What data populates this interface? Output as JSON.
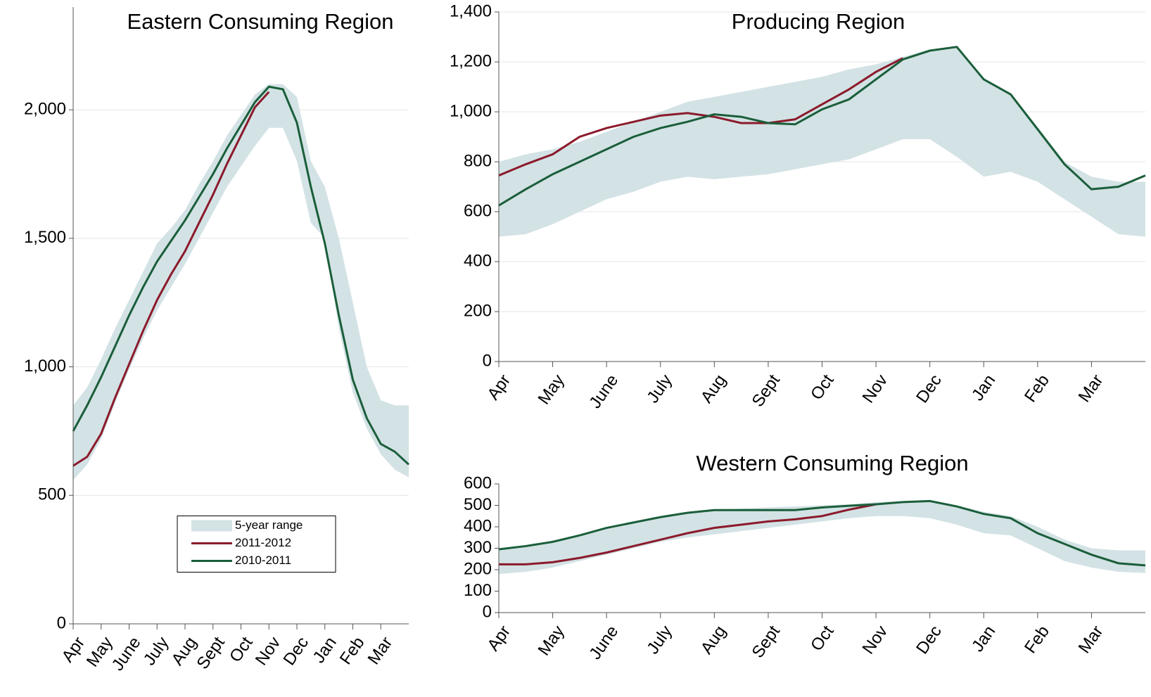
{
  "chart_data": [
    {
      "type": "line",
      "title": "Eastern Consuming Region",
      "x": [
        0,
        0.5,
        1,
        1.5,
        2,
        2.5,
        3,
        3.5,
        4,
        4.5,
        5,
        5.5,
        6,
        6.5,
        7,
        7.5,
        8,
        8.5,
        9,
        9.5,
        10,
        10.5,
        11,
        11.5,
        12
      ],
      "xlim": [
        0,
        12
      ],
      "xticks": [
        {
          "value": 0,
          "label": "Apr"
        },
        {
          "value": 1,
          "label": "May"
        },
        {
          "value": 2,
          "label": "June"
        },
        {
          "value": 3,
          "label": "July"
        },
        {
          "value": 4,
          "label": "Aug"
        },
        {
          "value": 5,
          "label": "Sept"
        },
        {
          "value": 6,
          "label": "Oct"
        },
        {
          "value": 7,
          "label": "Nov"
        },
        {
          "value": 8,
          "label": "Dec"
        },
        {
          "value": 9,
          "label": "Jan"
        },
        {
          "value": 10,
          "label": "Feb"
        },
        {
          "value": 11,
          "label": "Mar"
        }
      ],
      "ylim": [
        0,
        2400
      ],
      "yticks": [
        0,
        500,
        {
          "value": 1000,
          "label": "1,000"
        },
        {
          "value": 1500,
          "label": "1,500"
        },
        {
          "value": 2000,
          "label": "2,000"
        }
      ],
      "grid": true,
      "legend": "lower center",
      "series": [
        {
          "name": "5-year range",
          "color": "#d3e2e5",
          "high": [
            850,
            920,
            1030,
            1150,
            1260,
            1370,
            1480,
            1540,
            1610,
            1710,
            1800,
            1900,
            1980,
            2060,
            2100,
            2100,
            2050,
            1800,
            1700,
            1500,
            1250,
            1000,
            870,
            850,
            850
          ],
          "low": [
            560,
            620,
            720,
            860,
            990,
            1110,
            1220,
            1310,
            1400,
            1500,
            1600,
            1700,
            1780,
            1860,
            1930,
            1930,
            1800,
            1560,
            1500,
            1150,
            900,
            760,
            660,
            600,
            570
          ]
        },
        {
          "name": "2011-2012",
          "color": "#8b1a2b",
          "values": [
            615,
            650,
            740,
            880,
            1010,
            1140,
            1260,
            1360,
            1450,
            1560,
            1670,
            1790,
            1900,
            2010,
            2070,
            null,
            null,
            null,
            null,
            null,
            null,
            null,
            null,
            null,
            null
          ]
        },
        {
          "name": "2010-2011",
          "color": "#1a5e3a",
          "values": [
            750,
            850,
            960,
            1080,
            1200,
            1310,
            1410,
            1490,
            1570,
            1660,
            1750,
            1850,
            1940,
            2030,
            2090,
            2080,
            1950,
            1700,
            1480,
            1200,
            950,
            800,
            700,
            670,
            620
          ]
        }
      ]
    },
    {
      "type": "line",
      "title": "Producing Region",
      "x": [
        0,
        0.5,
        1,
        1.5,
        2,
        2.5,
        3,
        3.5,
        4,
        4.5,
        5,
        5.5,
        6,
        6.5,
        7,
        7.5,
        8,
        8.5,
        9,
        9.5,
        10,
        10.5,
        11,
        11.5,
        12
      ],
      "xlim": [
        0,
        12
      ],
      "xticks": [
        {
          "value": 0,
          "label": "Apr"
        },
        {
          "value": 1,
          "label": "May"
        },
        {
          "value": 2,
          "label": "June"
        },
        {
          "value": 3,
          "label": "July"
        },
        {
          "value": 4,
          "label": "Aug"
        },
        {
          "value": 5,
          "label": "Sept"
        },
        {
          "value": 6,
          "label": "Oct"
        },
        {
          "value": 7,
          "label": "Nov"
        },
        {
          "value": 8,
          "label": "Dec"
        },
        {
          "value": 9,
          "label": "Jan"
        },
        {
          "value": 10,
          "label": "Feb"
        },
        {
          "value": 11,
          "label": "Mar"
        }
      ],
      "ylim": [
        0,
        1400
      ],
      "yticks": [
        0,
        200,
        400,
        600,
        800,
        {
          "value": 1000,
          "label": "1,000"
        },
        {
          "value": 1200,
          "label": "1,200"
        },
        {
          "value": 1400,
          "label": "1,400"
        }
      ],
      "grid": true,
      "series": [
        {
          "color": "#d3e2e5",
          "high": [
            800,
            830,
            850,
            880,
            920,
            960,
            1000,
            1040,
            1060,
            1080,
            1100,
            1120,
            1140,
            1170,
            1190,
            1220,
            1250,
            1260,
            1130,
            1070,
            940,
            800,
            740,
            720,
            720
          ],
          "low": [
            500,
            510,
            550,
            600,
            650,
            680,
            720,
            740,
            730,
            740,
            750,
            770,
            790,
            810,
            850,
            890,
            890,
            820,
            740,
            760,
            720,
            650,
            580,
            510,
            500
          ]
        },
        {
          "color": "#8b1a2b",
          "values": [
            745,
            790,
            830,
            900,
            935,
            960,
            985,
            995,
            980,
            955,
            955,
            970,
            1030,
            1090,
            1160,
            1215,
            null,
            null,
            null,
            null,
            null,
            null,
            null,
            null,
            null
          ]
        },
        {
          "color": "#1a5e3a",
          "values": [
            625,
            690,
            750,
            800,
            850,
            900,
            935,
            960,
            990,
            980,
            955,
            950,
            1010,
            1050,
            1130,
            1210,
            1245,
            1260,
            1130,
            1070,
            930,
            790,
            690,
            700,
            745
          ]
        }
      ]
    },
    {
      "type": "line",
      "title": "Western Consuming Region",
      "x": [
        0,
        0.5,
        1,
        1.5,
        2,
        2.5,
        3,
        3.5,
        4,
        4.5,
        5,
        5.5,
        6,
        6.5,
        7,
        7.5,
        8,
        8.5,
        9,
        9.5,
        10,
        10.5,
        11,
        11.5,
        12
      ],
      "xlim": [
        0,
        12
      ],
      "xticks": [
        {
          "value": 0,
          "label": "Apr"
        },
        {
          "value": 1,
          "label": "May"
        },
        {
          "value": 2,
          "label": "June"
        },
        {
          "value": 3,
          "label": "July"
        },
        {
          "value": 4,
          "label": "Aug"
        },
        {
          "value": 5,
          "label": "Sept"
        },
        {
          "value": 6,
          "label": "Oct"
        },
        {
          "value": 7,
          "label": "Nov"
        },
        {
          "value": 8,
          "label": "Dec"
        },
        {
          "value": 9,
          "label": "Jan"
        },
        {
          "value": 10,
          "label": "Feb"
        },
        {
          "value": 11,
          "label": "Mar"
        }
      ],
      "ylim": [
        0,
        600
      ],
      "yticks": [
        0,
        100,
        200,
        300,
        400,
        500,
        600
      ],
      "grid": false,
      "series": [
        {
          "color": "#d3e2e5",
          "high": [
            300,
            310,
            330,
            360,
            395,
            420,
            445,
            465,
            480,
            485,
            490,
            495,
            500,
            505,
            515,
            520,
            525,
            500,
            470,
            450,
            400,
            340,
            300,
            290,
            290
          ],
          "low": [
            180,
            190,
            210,
            240,
            270,
            300,
            330,
            350,
            365,
            380,
            395,
            410,
            425,
            440,
            450,
            450,
            440,
            410,
            370,
            360,
            300,
            240,
            210,
            190,
            185
          ]
        },
        {
          "color": "#8b1a2b",
          "values": [
            225,
            225,
            235,
            255,
            280,
            310,
            340,
            370,
            395,
            410,
            425,
            435,
            450,
            480,
            505,
            null,
            null,
            null,
            null,
            null,
            null,
            null,
            null,
            null,
            null
          ]
        },
        {
          "color": "#1a5e3a",
          "values": [
            295,
            310,
            330,
            360,
            395,
            420,
            445,
            465,
            478,
            478,
            478,
            478,
            490,
            498,
            505,
            515,
            520,
            495,
            460,
            440,
            370,
            320,
            270,
            230,
            220
          ]
        }
      ]
    }
  ]
}
